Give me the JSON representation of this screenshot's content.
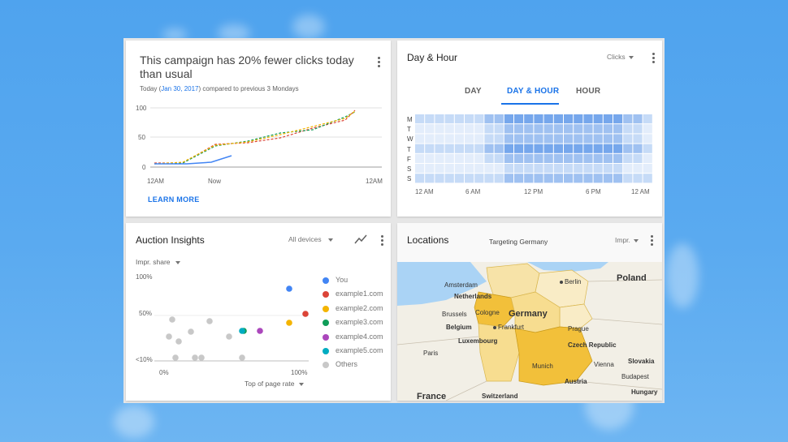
{
  "campaign": {
    "headline": "This campaign has 20% fewer clicks today than usual",
    "today_prefix": "Today (",
    "date": "Jan 30, 2017",
    "compare_suffix": ") compared to previous 3 Mondays",
    "y_ticks": [
      "100",
      "50",
      "0"
    ],
    "x_ticks": [
      "12AM",
      "Now",
      "12AM"
    ],
    "learn_more": "LEARN MORE"
  },
  "day_hour": {
    "title": "Day & Hour",
    "metric": "Clicks",
    "tabs": [
      "DAY",
      "DAY & HOUR",
      "HOUR"
    ],
    "active_tab": 1,
    "day_labels": [
      "M",
      "T",
      "W",
      "T",
      "F",
      "S",
      "S"
    ],
    "hour_labels": [
      "12 AM",
      "6 AM",
      "12 PM",
      "6 PM",
      "12 AM"
    ]
  },
  "auction": {
    "title": "Auction Insights",
    "device_filter": "All devices",
    "metric_select": "Impr. share",
    "y_ticks": [
      "100%",
      "50%",
      "<10%"
    ],
    "x_ticks": [
      "0%",
      "100%"
    ],
    "x_axis_select": "Top of page rate",
    "legend": [
      {
        "name": "You",
        "color": "#4285f4"
      },
      {
        "name": "example1.com",
        "color": "#db4437"
      },
      {
        "name": "example2.com",
        "color": "#f4b400"
      },
      {
        "name": "example3.com",
        "color": "#0f9d58"
      },
      {
        "name": "example4.com",
        "color": "#ab47bc"
      },
      {
        "name": "example5.com",
        "color": "#00acc1"
      },
      {
        "name": "Others",
        "color": "#c8c8c8"
      }
    ]
  },
  "locations": {
    "title": "Locations",
    "targeting": "Targeting Germany",
    "metric": "Impr.",
    "labels": {
      "poland": "Poland",
      "berlin": "Berlin",
      "amsterdam": "Amsterdam",
      "netherlands": "Netherlands",
      "brussels": "Brussels",
      "cologne": "Cologne",
      "germany": "Germany",
      "belgium": "Belgium",
      "frankfurt": "Frankfurt",
      "prague": "Prague",
      "luxembourg": "Luxembourg",
      "czech": "Czech Republic",
      "paris": "Paris",
      "slovakia": "Slovakia",
      "munich": "Munich",
      "vienna": "Vienna",
      "budapest": "Budapest",
      "austria": "Austria",
      "hungary": "Hungary",
      "france": "France",
      "switzerland": "Switzerland"
    }
  }
}
